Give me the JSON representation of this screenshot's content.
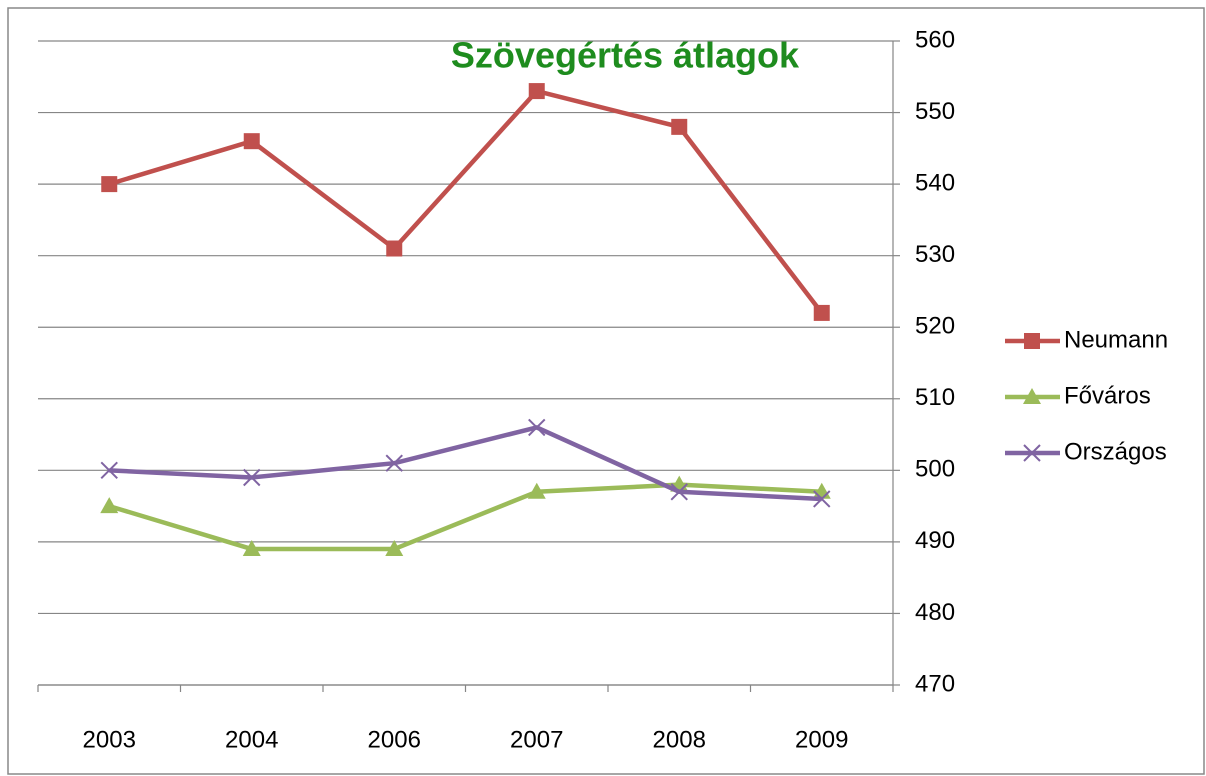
{
  "chart_data": {
    "type": "line",
    "title": "Szövegértés átlagok",
    "categories": [
      "2003",
      "2004",
      "2006",
      "2007",
      "2008",
      "2009"
    ],
    "series": [
      {
        "name": "Neumann",
        "color": "#c0504d",
        "marker": "square",
        "values": [
          540,
          546,
          531,
          553,
          548,
          522
        ]
      },
      {
        "name": "Főváros",
        "color": "#9bbb59",
        "marker": "triangle",
        "values": [
          495,
          489,
          489,
          497,
          498,
          497
        ]
      },
      {
        "name": "Országos",
        "color": "#8064a2",
        "marker": "x",
        "values": [
          500,
          499,
          501,
          506,
          497,
          496
        ]
      }
    ],
    "ylim": [
      470,
      560
    ],
    "yticks": [
      470,
      480,
      490,
      500,
      510,
      520,
      530,
      540,
      550,
      560
    ],
    "y_axis_side": "right",
    "grid": true,
    "legend": "right"
  }
}
